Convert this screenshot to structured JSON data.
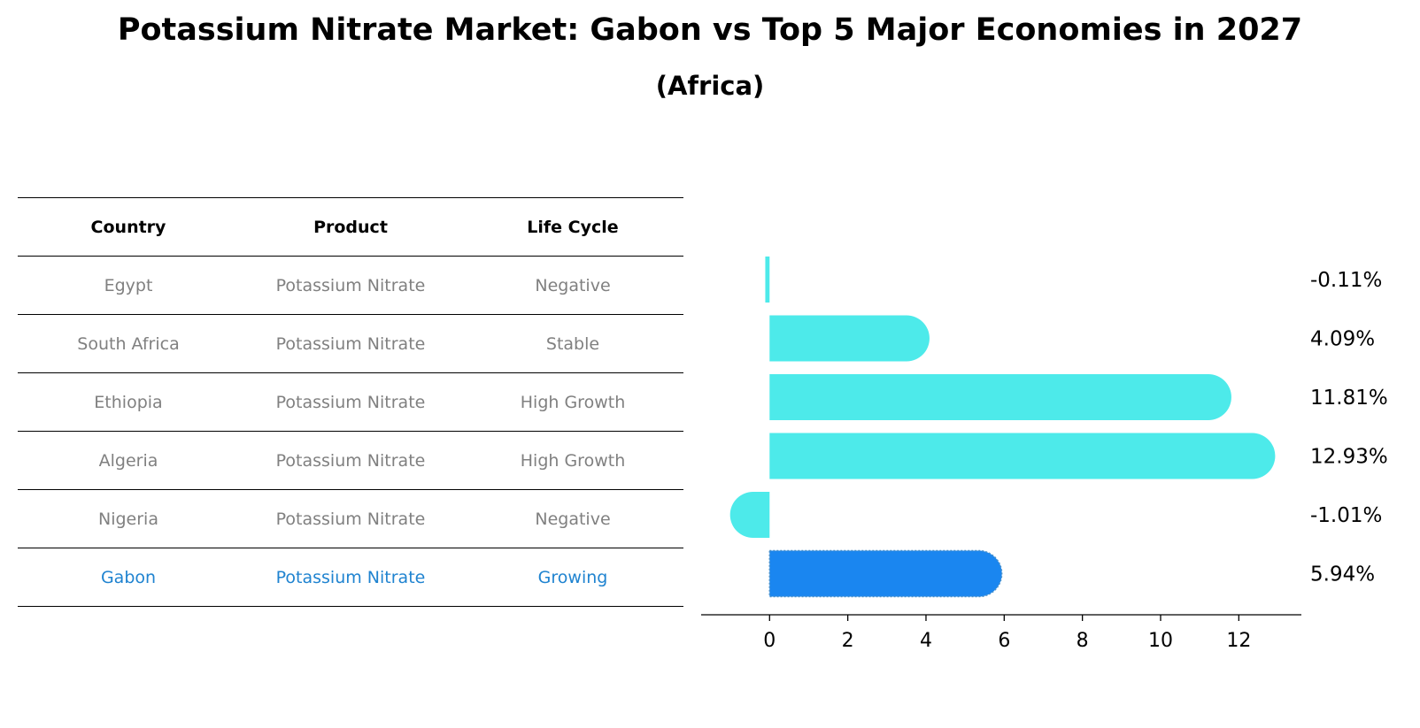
{
  "title": "Potassium Nitrate Market: Gabon vs Top 5 Major Economies in 2027",
  "subtitle": "(Africa)",
  "table": {
    "headers": [
      "Country",
      "Product",
      "Life Cycle"
    ],
    "rows": [
      {
        "country": "Egypt",
        "product": "Potassium Nitrate",
        "life_cycle": "Negative"
      },
      {
        "country": "South Africa",
        "product": "Potassium Nitrate",
        "life_cycle": "Stable"
      },
      {
        "country": "Ethiopia",
        "product": "Potassium Nitrate",
        "life_cycle": "High Growth"
      },
      {
        "country": "Algeria",
        "product": "Potassium Nitrate",
        "life_cycle": "High Growth"
      },
      {
        "country": "Nigeria",
        "product": "Potassium Nitrate",
        "life_cycle": "Negative"
      },
      {
        "country": "Gabon",
        "product": "Potassium Nitrate",
        "life_cycle": "Growing"
      }
    ]
  },
  "chart_data": {
    "type": "bar",
    "orientation": "horizontal",
    "categories": [
      "Egypt",
      "South Africa",
      "Ethiopia",
      "Algeria",
      "Nigeria",
      "Gabon"
    ],
    "values": [
      -0.11,
      4.09,
      11.81,
      12.93,
      -1.01,
      5.94
    ],
    "value_labels": [
      "-0.11%",
      "4.09%",
      "11.81%",
      "12.93%",
      "-1.01%",
      "5.94%"
    ],
    "xlim": [
      -1.75,
      13.6
    ],
    "xticks": [
      0,
      2,
      4,
      6,
      8,
      10,
      12
    ],
    "xtick_labels": [
      "0",
      "2",
      "4",
      "6",
      "8",
      "10",
      "12"
    ],
    "highlight": "Gabon",
    "colors": {
      "default": "#4deaea",
      "highlight": "#1a86f0"
    }
  }
}
